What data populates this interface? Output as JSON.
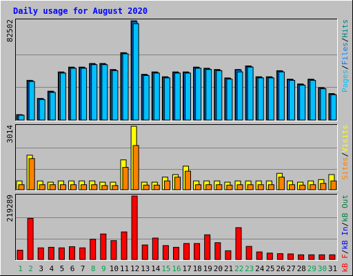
{
  "colors": {
    "background": "#c0c0c0",
    "pages": "#00c0ff",
    "files": "#0080ff",
    "hits": "#008080",
    "visits": "#ffff00",
    "sites": "#ff8000",
    "kbf": "#ff0000",
    "kbin": "#0000ff",
    "kbout": "#008040",
    "weekend_day": "#00a050",
    "weekday": "#000000"
  },
  "chart_data": {
    "type": "bar",
    "title": "Daily usage for August 2020",
    "days": [
      "1",
      "2",
      "3",
      "4",
      "5",
      "6",
      "7",
      "8",
      "9",
      "10",
      "11",
      "12",
      "13",
      "14",
      "15",
      "16",
      "17",
      "18",
      "19",
      "20",
      "21",
      "22",
      "23",
      "24",
      "25",
      "26",
      "27",
      "28",
      "29",
      "30",
      "31"
    ],
    "weekend_days": [
      "1",
      "2",
      "8",
      "9",
      "15",
      "16",
      "22",
      "23",
      "29",
      "30"
    ],
    "panels": [
      {
        "name": "hits-files-pages",
        "ymax_label": "82502",
        "ymax": 82502,
        "legend": [
          {
            "text": "Pages",
            "color": "#00c0ff"
          },
          {
            "text": "/",
            "color": "#000000"
          },
          {
            "text": "Files",
            "color": "#0080ff"
          },
          {
            "text": "/",
            "color": "#000000"
          },
          {
            "text": "Hits",
            "color": "#008080"
          }
        ],
        "series": [
          {
            "name": "Hits",
            "color": "#008080",
            "values": [
              4500,
              33000,
              18000,
              24000,
              40000,
              44000,
              44000,
              47000,
              47000,
              42000,
              56000,
              82502,
              38000,
              40000,
              36000,
              40000,
              40000,
              44000,
              43000,
              42000,
              35000,
              42000,
              45000,
              36000,
              36000,
              41000,
              34000,
              30000,
              34000,
              27000,
              22000
            ]
          },
          {
            "name": "Files",
            "color": "#0080ff",
            "values": [
              4300,
              32500,
              17700,
              23500,
              39500,
              43500,
              43500,
              46500,
              46500,
              41500,
              55500,
              81500,
              37500,
              39500,
              35500,
              39500,
              39500,
              43500,
              42500,
              41500,
              34500,
              41500,
              44500,
              35500,
              35500,
              40500,
              33500,
              29500,
              33500,
              26500,
              21500
            ]
          },
          {
            "name": "Pages",
            "color": "#00c0ff",
            "values": [
              4000,
              32000,
              17000,
              23000,
              39000,
              43000,
              43000,
              46000,
              46000,
              41000,
              55000,
              80000,
              37000,
              39000,
              35000,
              39000,
              39000,
              43000,
              42000,
              41000,
              34000,
              40000,
              44000,
              35000,
              35000,
              40000,
              33000,
              29000,
              33000,
              26000,
              21000
            ]
          }
        ]
      },
      {
        "name": "visits-sites",
        "ymax_label": "3014",
        "ymax": 3014,
        "legend": [
          {
            "text": "Sites",
            "color": "#ff8000"
          },
          {
            "text": "/",
            "color": "#000000"
          },
          {
            "text": "Visits",
            "color": "#ffff00"
          }
        ],
        "series": [
          {
            "name": "Visits",
            "color": "#ffff00",
            "values": [
              420,
              1640,
              420,
              360,
              420,
              420,
              420,
              420,
              360,
              360,
              1420,
              3014,
              360,
              360,
              600,
              720,
              1120,
              420,
              420,
              420,
              360,
              420,
              420,
              420,
              420,
              780,
              420,
              360,
              420,
              480,
              720
            ]
          },
          {
            "name": "Sites",
            "color": "#ff8000",
            "values": [
              240,
              1480,
              240,
              240,
              240,
              240,
              240,
              240,
              200,
              200,
              1060,
              2100,
              220,
              220,
              420,
              600,
              880,
              240,
              240,
              240,
              220,
              240,
              240,
              240,
              240,
              600,
              240,
              220,
              240,
              300,
              420
            ]
          }
        ]
      },
      {
        "name": "kbytes",
        "ymax_label": "219289",
        "ymax": 219289,
        "legend": [
          {
            "text": "kB F",
            "color": "#ff0000"
          },
          {
            "text": "/",
            "color": "#000000"
          },
          {
            "text": "kB In",
            "color": "#0000ff"
          },
          {
            "text": "/",
            "color": "#000000"
          },
          {
            "text": "kB Out",
            "color": "#008040"
          }
        ],
        "series": [
          {
            "name": "kB F",
            "color": "#ff0000",
            "values": [
              32000,
              142000,
              40000,
              42000,
              40000,
              44000,
              40000,
              70000,
              88000,
              65000,
              95000,
              219289,
              50000,
              74000,
              48000,
              42000,
              55000,
              55000,
              85000,
              58000,
              30000,
              110000,
              45000,
              26000,
              22000,
              20000,
              19000,
              16000,
              16000,
              16000,
              16000
            ]
          }
        ]
      }
    ]
  }
}
